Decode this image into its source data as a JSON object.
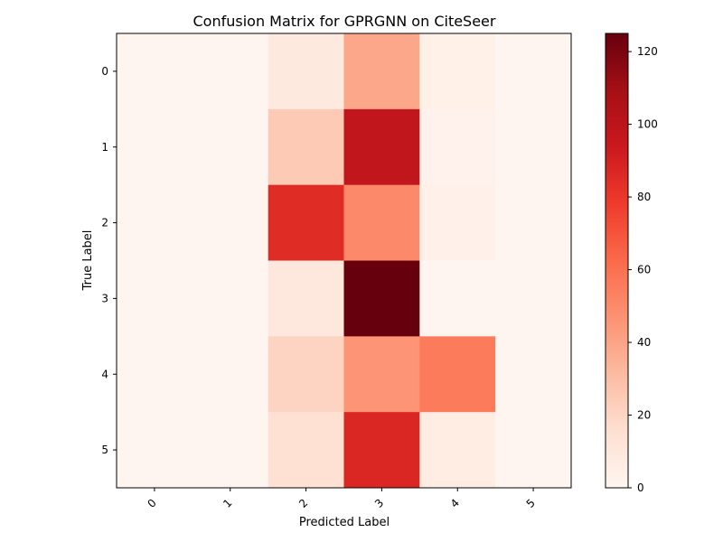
{
  "chart_data": {
    "type": "heatmap",
    "title": "Confusion Matrix for GPRGNN on CiteSeer",
    "xlabel": "Predicted Label",
    "ylabel": "True Label",
    "x_categories": [
      "0",
      "1",
      "2",
      "3",
      "4",
      "5"
    ],
    "y_categories": [
      "0",
      "1",
      "2",
      "3",
      "4",
      "5"
    ],
    "values": [
      [
        0,
        0,
        9,
        39,
        4,
        0
      ],
      [
        0,
        0,
        25,
        98,
        2,
        0
      ],
      [
        0,
        0,
        85,
        50,
        3,
        0
      ],
      [
        0,
        0,
        10,
        125,
        0,
        0
      ],
      [
        0,
        0,
        21,
        46,
        56,
        0
      ],
      [
        0,
        0,
        15,
        87,
        6,
        0
      ]
    ],
    "colormap": "Reds",
    "colorbar": {
      "min": 0,
      "max": 125,
      "ticks": [
        0,
        20,
        40,
        60,
        80,
        100,
        120
      ]
    },
    "grid": false
  }
}
